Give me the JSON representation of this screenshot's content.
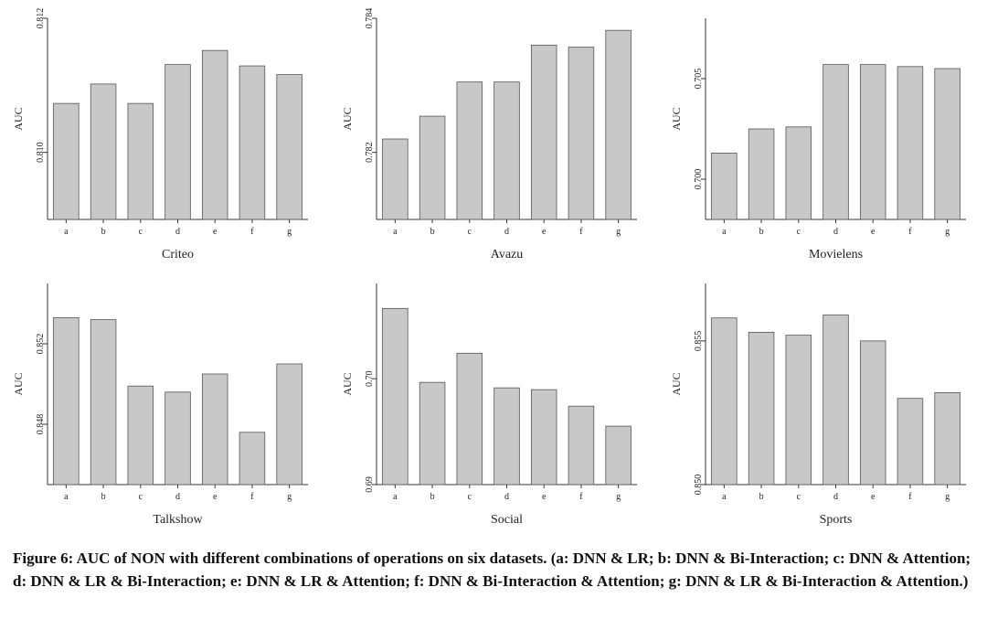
{
  "chart_data": [
    {
      "type": "bar",
      "x_label": "Criteo",
      "y_label": "AUC",
      "color": "#c8c8c8",
      "categories": [
        "a",
        "b",
        "c",
        "d",
        "e",
        "f",
        "g"
      ],
      "values": [
        0.81073,
        0.81102,
        0.81073,
        0.81131,
        0.81152,
        0.81129,
        0.81116
      ],
      "ylim": [
        0.809,
        0.812
      ],
      "yticks": [
        {
          "value": 0.81,
          "label": "0.810"
        },
        0.812
      ]
    },
    {
      "type": "bar",
      "x_label": "Avazu",
      "y_label": "AUC",
      "color": "#c8c8c8",
      "categories": [
        "a",
        "b",
        "c",
        "d",
        "e",
        "f",
        "g"
      ],
      "values": [
        0.7822,
        0.78254,
        0.78305,
        0.78305,
        0.7836,
        0.78357,
        0.78382
      ],
      "ylim": [
        0.781,
        0.784
      ],
      "yticks": [
        0.782,
        0.784
      ]
    },
    {
      "type": "bar",
      "x_label": "Movielens",
      "y_label": "AUC",
      "color": "#c8c8c8",
      "categories": [
        "a",
        "b",
        "c",
        "d",
        "e",
        "f",
        "g"
      ],
      "values": [
        0.7013,
        0.7025,
        0.7026,
        0.7057,
        0.7057,
        0.7056,
        0.7055
      ],
      "ylim": [
        0.698,
        0.708
      ],
      "yticks": [
        {
          "value": 0.7,
          "label": "0.700"
        },
        0.705
      ]
    },
    {
      "type": "bar",
      "x_label": "Talkshow",
      "y_label": "AUC",
      "color": "#c8c8c8",
      "categories": [
        "a",
        "b",
        "c",
        "d",
        "e",
        "f",
        "g"
      ],
      "values": [
        0.8533,
        0.8532,
        0.8499,
        0.8496,
        0.8505,
        0.8476,
        0.851
      ],
      "ylim": [
        0.845,
        0.855
      ],
      "yticks": [
        0.848,
        0.852
      ]
    },
    {
      "type": "bar",
      "x_label": "Social",
      "y_label": "AUC",
      "color": "#c8c8c8",
      "categories": [
        "a",
        "b",
        "c",
        "d",
        "e",
        "f",
        "g"
      ],
      "values": [
        0.70664,
        0.69966,
        0.70241,
        0.69914,
        0.69897,
        0.69741,
        0.69552
      ],
      "ylim": [
        0.69,
        0.709
      ],
      "yticks": [
        {
          "value": 0.69,
          "label": "0.69"
        },
        {
          "value": 0.7,
          "label": "0.70"
        }
      ]
    },
    {
      "type": "bar",
      "x_label": "Sports",
      "y_label": "AUC",
      "color": "#c8c8c8",
      "categories": [
        "a",
        "b",
        "c",
        "d",
        "e",
        "f",
        "g"
      ],
      "values": [
        0.8558,
        0.8553,
        0.8552,
        0.8559,
        0.855,
        0.853,
        0.8532
      ],
      "ylim": [
        0.85,
        0.857
      ],
      "yticks": [
        {
          "value": 0.85,
          "label": "0.850"
        },
        0.855
      ]
    }
  ],
  "caption": "Figure 6: AUC of NON with different combinations of operations on six datasets. (a: DNN & LR; b: DNN & Bi-Interaction; c: DNN & Attention; d: DNN & LR & Bi-Interaction; e: DNN & LR & Attention; f: DNN & Bi-Interaction & Attention; g: DNN & LR & Bi-Interaction & Attention.)"
}
